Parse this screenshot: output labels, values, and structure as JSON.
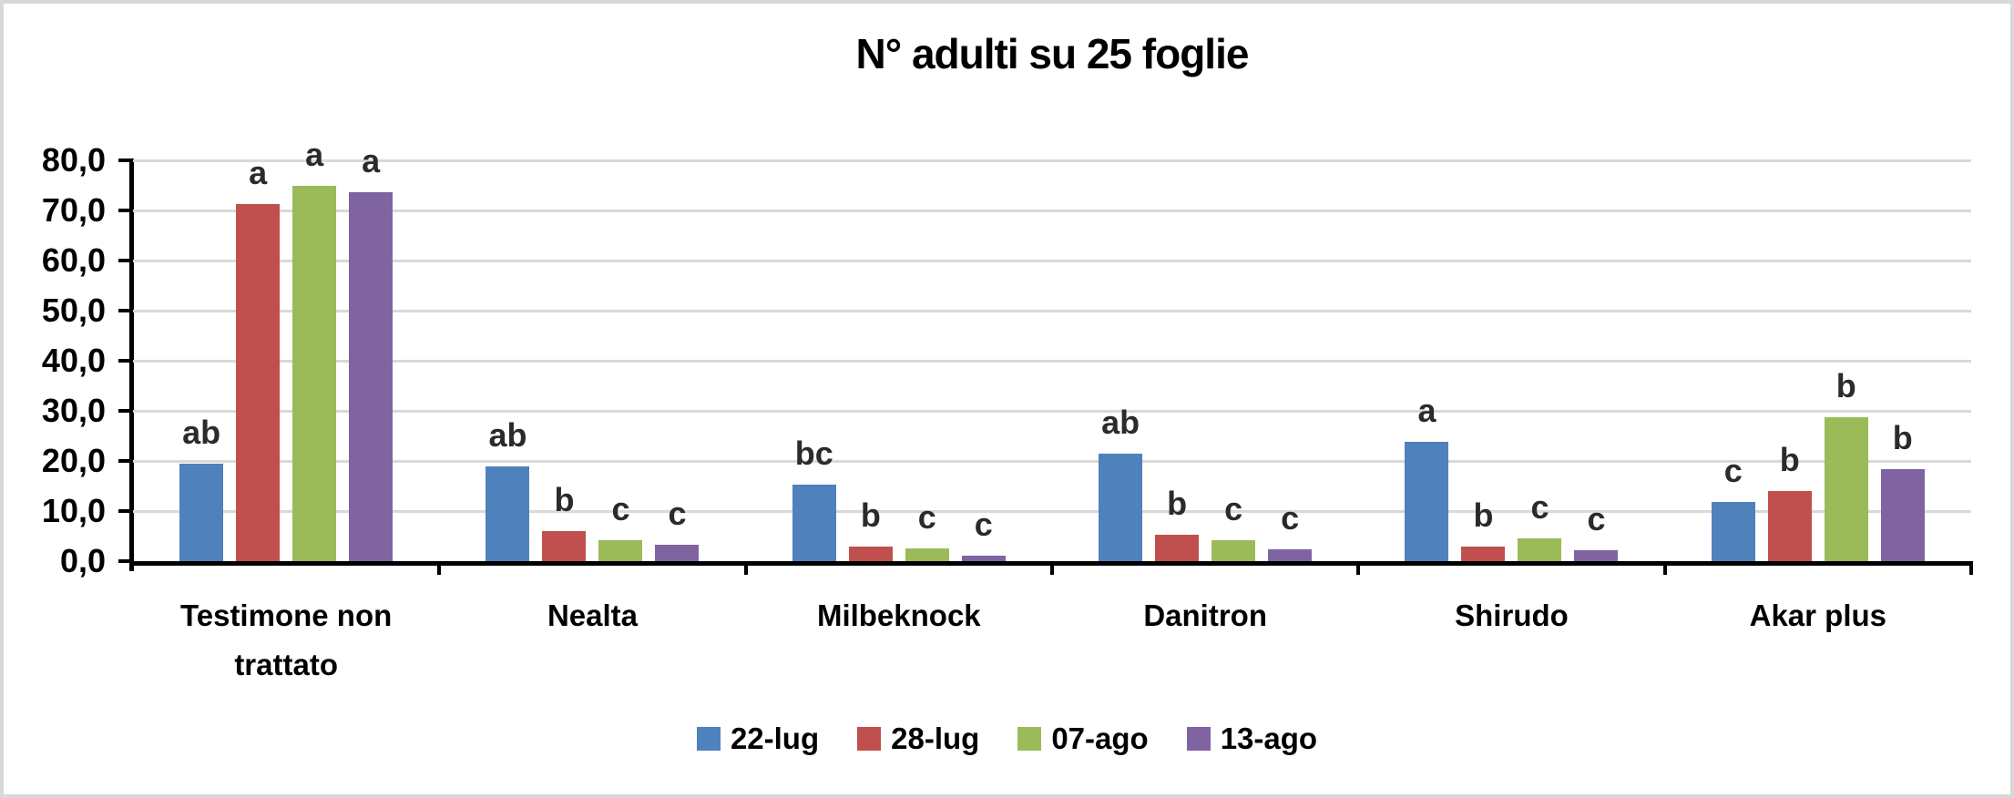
{
  "chart_data": {
    "type": "bar",
    "title": "N° adulti su 25 foglie",
    "categories": [
      "Testimone non trattato",
      "Nealta",
      "Milbeknock",
      "Danitron",
      "Shirudo",
      "Akar plus"
    ],
    "series": [
      {
        "name": "22-lug",
        "color": "#4F81BD",
        "values": [
          19.5,
          19.0,
          15.2,
          21.4,
          23.8,
          11.8
        ],
        "letters": [
          "ab",
          "ab",
          "bc",
          "ab",
          "a",
          "c"
        ]
      },
      {
        "name": "28-lug",
        "color": "#C0504D",
        "values": [
          71.2,
          6.0,
          2.9,
          5.2,
          2.9,
          14.0
        ],
        "letters": [
          "a",
          "b",
          "b",
          "b",
          "b",
          "b"
        ]
      },
      {
        "name": "07-ago",
        "color": "#9BBB59",
        "values": [
          74.9,
          4.2,
          2.5,
          4.2,
          4.5,
          28.7
        ],
        "letters": [
          "a",
          "c",
          "c",
          "c",
          "c",
          "b"
        ]
      },
      {
        "name": "13-ago",
        "color": "#8064A2",
        "values": [
          73.7,
          3.2,
          1.1,
          2.4,
          2.2,
          18.4
        ],
        "letters": [
          "a",
          "c",
          "c",
          "c",
          "c",
          "b"
        ]
      }
    ],
    "ylim": [
      0,
      80
    ],
    "ytick_step": 10,
    "ytick_labels": [
      "0,0",
      "10,0",
      "20,0",
      "30,0",
      "40,0",
      "50,0",
      "60,0",
      "70,0",
      "80,0"
    ],
    "grid": true,
    "legend_position": "bottom",
    "colors": {
      "axis": "#000000",
      "gridline": "#d9d9d9",
      "frame_border": "#d8d8d8",
      "annotation": "#2b2b2b",
      "background": "#ffffff"
    }
  }
}
